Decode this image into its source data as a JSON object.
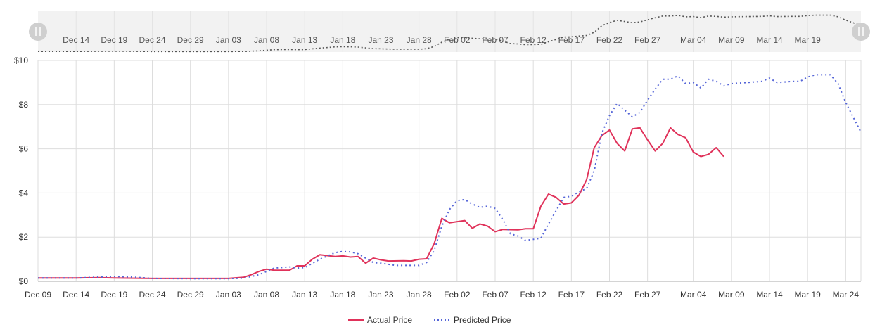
{
  "chart_data": {
    "type": "line",
    "title": "",
    "xlabel": "",
    "ylabel": "",
    "y_prefix": "$",
    "ylim": [
      0,
      10
    ],
    "y_ticks": [
      0,
      2,
      4,
      6,
      8,
      10
    ],
    "y_tick_labels": [
      "$0",
      "$2",
      "$4",
      "$6",
      "$8",
      "$10"
    ],
    "xlim": [
      "2023-12-09",
      "2024-03-26"
    ],
    "x_ticks": [
      "2023-12-09",
      "2023-12-14",
      "2023-12-19",
      "2023-12-24",
      "2023-12-29",
      "2024-01-03",
      "2024-01-08",
      "2024-01-13",
      "2024-01-18",
      "2024-01-23",
      "2024-01-28",
      "2024-02-02",
      "2024-02-07",
      "2024-02-12",
      "2024-02-17",
      "2024-02-22",
      "2024-02-27",
      "2024-03-04",
      "2024-03-09",
      "2024-03-14",
      "2024-03-19",
      "2024-03-24"
    ],
    "x_tick_labels": [
      "Dec 09",
      "Dec 14",
      "Dec 19",
      "Dec 24",
      "Dec 29",
      "Jan 03",
      "Jan 08",
      "Jan 13",
      "Jan 18",
      "Jan 23",
      "Jan 28",
      "Feb 02",
      "Feb 07",
      "Feb 12",
      "Feb 17",
      "Feb 22",
      "Feb 27",
      "Mar 04",
      "Mar 09",
      "Mar 14",
      "Mar 19",
      "Mar 24"
    ],
    "grid": true,
    "legend_position": "bottom-center",
    "series": [
      {
        "name": "Actual Price",
        "color": "#e0325a",
        "style": "solid",
        "points": [
          [
            "2023-12-09",
            0.15
          ],
          [
            "2023-12-14",
            0.15
          ],
          [
            "2023-12-17",
            0.17
          ],
          [
            "2023-12-19",
            0.15
          ],
          [
            "2023-12-24",
            0.13
          ],
          [
            "2023-12-29",
            0.13
          ],
          [
            "2024-01-03",
            0.13
          ],
          [
            "2024-01-05",
            0.18
          ],
          [
            "2024-01-06",
            0.3
          ],
          [
            "2024-01-07",
            0.45
          ],
          [
            "2024-01-08",
            0.55
          ],
          [
            "2024-01-09",
            0.5
          ],
          [
            "2024-01-11",
            0.5
          ],
          [
            "2024-01-12",
            0.7
          ],
          [
            "2024-01-13",
            0.7
          ],
          [
            "2024-01-14",
            1.0
          ],
          [
            "2024-01-15",
            1.2
          ],
          [
            "2024-01-17",
            1.12
          ],
          [
            "2024-01-18",
            1.15
          ],
          [
            "2024-01-19",
            1.1
          ],
          [
            "2024-01-20",
            1.12
          ],
          [
            "2024-01-21",
            0.82
          ],
          [
            "2024-01-22",
            1.05
          ],
          [
            "2024-01-23",
            0.97
          ],
          [
            "2024-01-24",
            0.92
          ],
          [
            "2024-01-26",
            0.93
          ],
          [
            "2024-01-27",
            0.92
          ],
          [
            "2024-01-28",
            1.0
          ],
          [
            "2024-01-29",
            1.02
          ],
          [
            "2024-01-30",
            1.7
          ],
          [
            "2024-01-31",
            2.85
          ],
          [
            "2024-02-01",
            2.65
          ],
          [
            "2024-02-03",
            2.75
          ],
          [
            "2024-02-04",
            2.4
          ],
          [
            "2024-02-05",
            2.6
          ],
          [
            "2024-02-06",
            2.5
          ],
          [
            "2024-02-07",
            2.25
          ],
          [
            "2024-02-08",
            2.35
          ],
          [
            "2024-02-10",
            2.33
          ],
          [
            "2024-02-11",
            2.38
          ],
          [
            "2024-02-12",
            2.38
          ],
          [
            "2024-02-13",
            3.4
          ],
          [
            "2024-02-14",
            3.95
          ],
          [
            "2024-02-15",
            3.8
          ],
          [
            "2024-02-16",
            3.5
          ],
          [
            "2024-02-17",
            3.55
          ],
          [
            "2024-02-18",
            3.9
          ],
          [
            "2024-02-19",
            4.6
          ],
          [
            "2024-02-20",
            6.05
          ],
          [
            "2024-02-21",
            6.6
          ],
          [
            "2024-02-22",
            6.85
          ],
          [
            "2024-02-23",
            6.25
          ],
          [
            "2024-02-24",
            5.9
          ],
          [
            "2024-02-25",
            6.9
          ],
          [
            "2024-02-26",
            6.95
          ],
          [
            "2024-02-27",
            6.4
          ],
          [
            "2024-02-28",
            5.9
          ],
          [
            "2024-02-29",
            6.25
          ],
          [
            "2024-03-01",
            6.95
          ],
          [
            "2024-03-02",
            6.65
          ],
          [
            "2024-03-03",
            6.5
          ],
          [
            "2024-03-04",
            5.85
          ],
          [
            "2024-03-05",
            5.65
          ],
          [
            "2024-03-06",
            5.75
          ],
          [
            "2024-03-07",
            6.05
          ],
          [
            "2024-03-08",
            5.65
          ]
        ]
      },
      {
        "name": "Predicted Price",
        "color": "#5565d8",
        "style": "dotted",
        "points": [
          [
            "2023-12-09",
            0.15
          ],
          [
            "2023-12-14",
            0.15
          ],
          [
            "2023-12-19",
            0.22
          ],
          [
            "2023-12-21",
            0.2
          ],
          [
            "2023-12-24",
            0.13
          ],
          [
            "2023-12-29",
            0.12
          ],
          [
            "2024-01-03",
            0.12
          ],
          [
            "2024-01-05",
            0.14
          ],
          [
            "2024-01-07",
            0.3
          ],
          [
            "2024-01-09",
            0.6
          ],
          [
            "2024-01-11",
            0.65
          ],
          [
            "2024-01-12",
            0.6
          ],
          [
            "2024-01-13",
            0.62
          ],
          [
            "2024-01-15",
            1.0
          ],
          [
            "2024-01-16",
            1.15
          ],
          [
            "2024-01-17",
            1.3
          ],
          [
            "2024-01-18",
            1.35
          ],
          [
            "2024-01-19",
            1.33
          ],
          [
            "2024-01-20",
            1.25
          ],
          [
            "2024-01-21",
            1.05
          ],
          [
            "2024-01-22",
            0.85
          ],
          [
            "2024-01-23",
            0.82
          ],
          [
            "2024-01-25",
            0.72
          ],
          [
            "2024-01-28",
            0.72
          ],
          [
            "2024-01-29",
            0.85
          ],
          [
            "2024-01-30",
            1.4
          ],
          [
            "2024-01-31",
            2.5
          ],
          [
            "2024-02-01",
            3.25
          ],
          [
            "2024-02-02",
            3.65
          ],
          [
            "2024-02-03",
            3.7
          ],
          [
            "2024-02-04",
            3.5
          ],
          [
            "2024-02-05",
            3.35
          ],
          [
            "2024-02-06",
            3.4
          ],
          [
            "2024-02-07",
            3.3
          ],
          [
            "2024-02-08",
            2.8
          ],
          [
            "2024-02-09",
            2.15
          ],
          [
            "2024-02-10",
            2.05
          ],
          [
            "2024-02-11",
            1.85
          ],
          [
            "2024-02-13",
            1.95
          ],
          [
            "2024-02-14",
            2.6
          ],
          [
            "2024-02-15",
            3.2
          ],
          [
            "2024-02-16",
            3.8
          ],
          [
            "2024-02-17",
            3.85
          ],
          [
            "2024-02-18",
            4.05
          ],
          [
            "2024-02-19",
            4.2
          ],
          [
            "2024-02-20",
            5.0
          ],
          [
            "2024-02-21",
            6.7
          ],
          [
            "2024-02-22",
            7.5
          ],
          [
            "2024-02-23",
            8.05
          ],
          [
            "2024-02-24",
            7.75
          ],
          [
            "2024-02-25",
            7.45
          ],
          [
            "2024-02-26",
            7.65
          ],
          [
            "2024-02-27",
            8.2
          ],
          [
            "2024-02-28",
            8.7
          ],
          [
            "2024-02-29",
            9.15
          ],
          [
            "2024-03-01",
            9.15
          ],
          [
            "2024-03-02",
            9.3
          ],
          [
            "2024-03-03",
            8.95
          ],
          [
            "2024-03-04",
            9.0
          ],
          [
            "2024-03-05",
            8.75
          ],
          [
            "2024-03-06",
            9.15
          ],
          [
            "2024-03-07",
            9.05
          ],
          [
            "2024-03-08",
            8.85
          ],
          [
            "2024-03-09",
            8.95
          ],
          [
            "2024-03-11",
            9.0
          ],
          [
            "2024-03-13",
            9.05
          ],
          [
            "2024-03-14",
            9.2
          ],
          [
            "2024-03-15",
            9.0
          ],
          [
            "2024-03-17",
            9.05
          ],
          [
            "2024-03-18",
            9.05
          ],
          [
            "2024-03-19",
            9.25
          ],
          [
            "2024-03-20",
            9.35
          ],
          [
            "2024-03-22",
            9.35
          ],
          [
            "2024-03-23",
            8.95
          ],
          [
            "2024-03-24",
            8.1
          ],
          [
            "2024-03-26",
            6.75
          ]
        ]
      }
    ]
  },
  "navigator": {
    "x_tick_labels": [
      "Dec 14",
      "Dec 19",
      "Dec 24",
      "Dec 29",
      "Jan 03",
      "Jan 08",
      "Jan 13",
      "Jan 18",
      "Jan 23",
      "Jan 28",
      "Feb 02",
      "Feb 07",
      "Feb 12",
      "Feb 17",
      "Feb 22",
      "Feb 27",
      "Mar 04",
      "Mar 09",
      "Mar 14",
      "Mar 19"
    ],
    "background_color": "#f2f2f2",
    "line_color": "#555555"
  }
}
